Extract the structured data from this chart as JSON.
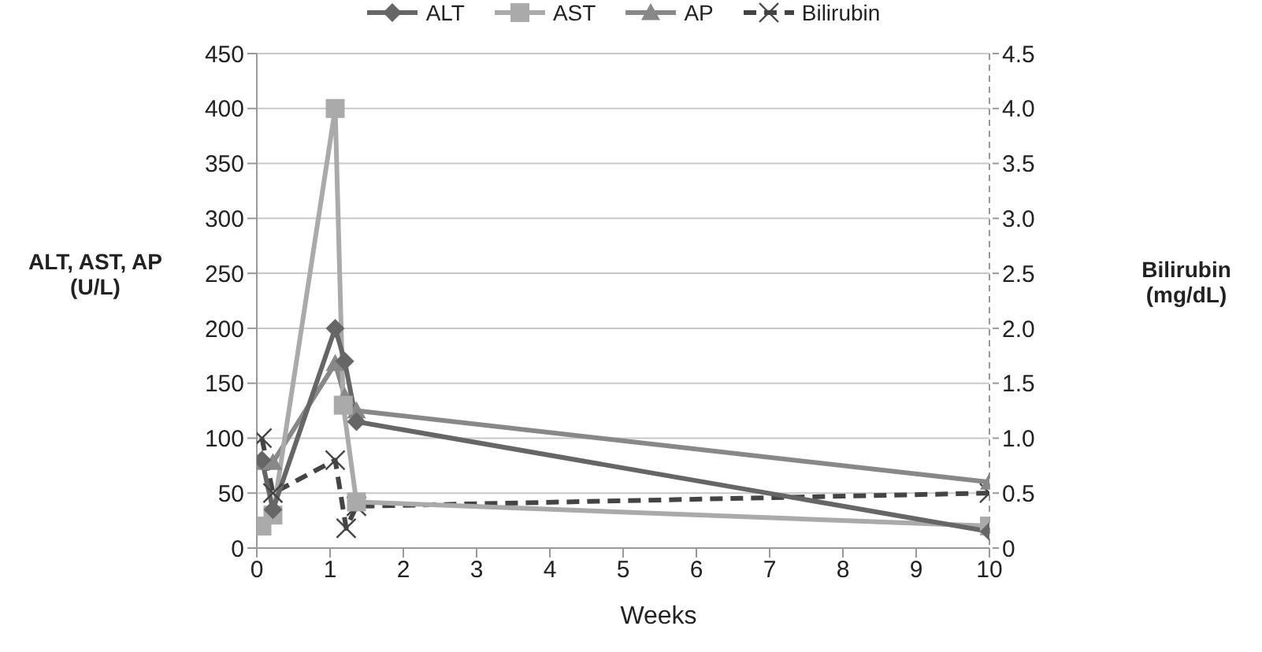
{
  "chart_data": {
    "type": "line",
    "xlabel": "Weeks",
    "ylabel": "ALT, AST, AP (U/L)",
    "y2label": "Bilirubin (mg/dL)",
    "xlim": [
      0,
      10
    ],
    "xticks": [
      0,
      1,
      2,
      3,
      4,
      5,
      6,
      7,
      8,
      9,
      10
    ],
    "ylim": [
      0,
      450
    ],
    "yticks": [
      0,
      50,
      100,
      150,
      200,
      250,
      300,
      350,
      400,
      450
    ],
    "y2lim": [
      0,
      4.5
    ],
    "y2ticks": [
      0,
      {
        "value": 0.5,
        "label": "0.5"
      },
      {
        "value": 1,
        "label": "1.0"
      },
      {
        "value": 1.5,
        "label": "1.5"
      },
      {
        "value": 2,
        "label": "2.0"
      },
      {
        "value": 2.5,
        "label": "2.5"
      },
      {
        "value": 3,
        "label": "3.0"
      },
      {
        "value": 3.5,
        "label": "3.5"
      },
      {
        "value": 4,
        "label": "4.0"
      },
      {
        "value": 4.5,
        "label": "4.5"
      }
    ],
    "grid": "y",
    "legend": "top",
    "series": [
      {
        "name": "ALT",
        "color": "#666666",
        "marker": "diamond",
        "line_style": "solid",
        "x": [
          0.07,
          0.22,
          1.07,
          1.2,
          1.36,
          10
        ],
        "values": [
          80,
          35,
          200,
          170,
          115,
          15
        ]
      },
      {
        "name": "AST",
        "color": "#aaaaaa",
        "marker": "square",
        "line_style": "solid",
        "x": [
          0.07,
          0.22,
          1.07,
          1.18,
          1.36,
          10
        ],
        "values": [
          20,
          30,
          400,
          130,
          42,
          20
        ]
      },
      {
        "name": "AP",
        "color": "#888888",
        "marker": "triangle",
        "line_style": "solid",
        "x": [
          0.07,
          0.22,
          1.07,
          1.2,
          1.36,
          10
        ],
        "values": [
          78,
          78,
          168,
          138,
          125,
          60
        ]
      },
      {
        "name": "Bilirubin",
        "color": "#444444",
        "marker": "cross",
        "line_style": "dashed",
        "axis": "y2",
        "x": [
          0.07,
          0.22,
          1.07,
          1.22,
          1.36,
          10
        ],
        "values": [
          1.0,
          0.5,
          0.8,
          0.18,
          0.38,
          0.5
        ]
      }
    ]
  }
}
